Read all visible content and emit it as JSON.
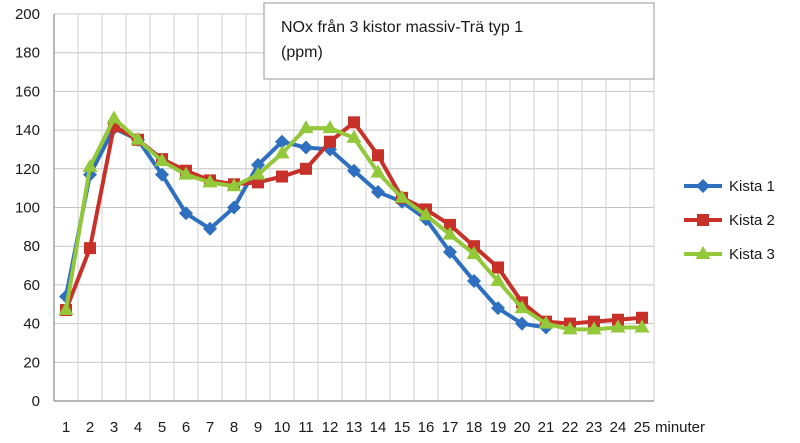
{
  "chart_data": {
    "type": "line",
    "title_lines": [
      "NOx från 3 kistor massiv-Trä typ 1",
      "(ppm)"
    ],
    "xlabel": "minuter",
    "ylabel": "",
    "categories": [
      1,
      2,
      3,
      4,
      5,
      6,
      7,
      8,
      9,
      10,
      11,
      12,
      13,
      14,
      15,
      16,
      17,
      18,
      19,
      20,
      21,
      22,
      23,
      24,
      25
    ],
    "ylim": [
      0,
      200
    ],
    "yticks": [
      0,
      20,
      40,
      60,
      80,
      100,
      120,
      140,
      160,
      180,
      200
    ],
    "grid": true,
    "legend_position": "right",
    "series": [
      {
        "name": "Kista 1",
        "color": "#2e6fc0",
        "marker": "diamond",
        "values": [
          54,
          117,
          141,
          135,
          117,
          97,
          89,
          100,
          122,
          134,
          131,
          130,
          119,
          108,
          103,
          94,
          77,
          62,
          48,
          40,
          38,
          null,
          null,
          null,
          null
        ]
      },
      {
        "name": "Kista 2",
        "color": "#c8302a",
        "marker": "square",
        "values": [
          47,
          79,
          142,
          135,
          125,
          119,
          114,
          112,
          113,
          116,
          120,
          134,
          144,
          127,
          105,
          99,
          91,
          80,
          69,
          51,
          41,
          40,
          41,
          42,
          43
        ]
      },
      {
        "name": "Kista 3",
        "color": "#92c83a",
        "marker": "triangle",
        "values": [
          47,
          121,
          146,
          135,
          124,
          117,
          113,
          111,
          117,
          128,
          141,
          141,
          136,
          118,
          105,
          96,
          86,
          76,
          62,
          48,
          40,
          37,
          37,
          38,
          38
        ]
      }
    ]
  }
}
